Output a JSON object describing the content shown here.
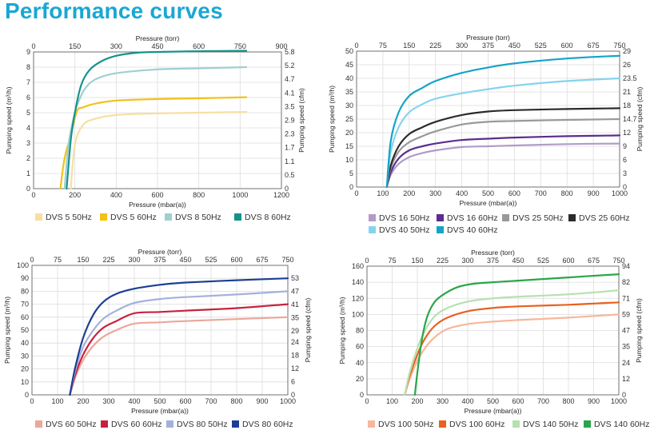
{
  "title": "Performance curves",
  "chart_data": [
    {
      "type": "line",
      "xlabel": "Pressure (mbar(a))",
      "x2label": "Pressure (torr)",
      "ylabel": "Pumping speed (m³/h)",
      "y2label": "Pumping speed (cfm)",
      "xlim": [
        0,
        1200
      ],
      "ylim": [
        0,
        9
      ],
      "xticks": [
        0,
        200,
        400,
        600,
        800,
        1000,
        1200
      ],
      "yticks": [
        0,
        1,
        2,
        3,
        4,
        5,
        6,
        7,
        8,
        9
      ],
      "x2ticks": [
        "0",
        "150",
        "300",
        "450",
        "600",
        "750",
        "900"
      ],
      "y2ticks": [
        "0",
        "0.5",
        "1.1",
        "1.7",
        "2.3",
        "2.9",
        "3.5",
        "4.1",
        "4.7",
        "5.2",
        "5.8"
      ],
      "grid": true,
      "legend": "bottom",
      "series": [
        {
          "name": "DVS 5 50Hz",
          "color": "#f7dfa2",
          "x": [
            180,
            200,
            240,
            300,
            400,
            600,
            800,
            1030
          ],
          "y": [
            0,
            2.9,
            4.2,
            4.6,
            4.85,
            4.95,
            5.0,
            5.05
          ]
        },
        {
          "name": "DVS 5 60Hz",
          "color": "#f2c218",
          "x": [
            130,
            150,
            180,
            210,
            240,
            300,
            400,
            600,
            800,
            1030
          ],
          "y": [
            0,
            2.0,
            3.5,
            5.1,
            5.35,
            5.6,
            5.8,
            5.9,
            5.95,
            6.02
          ]
        },
        {
          "name": "DVS 8 50Hz",
          "color": "#9fcfcf",
          "x": [
            150,
            170,
            200,
            220,
            250,
            300,
            400,
            600,
            800,
            1030
          ],
          "y": [
            0,
            3.0,
            5.0,
            5.8,
            6.6,
            7.2,
            7.6,
            7.85,
            7.92,
            8.0
          ]
        },
        {
          "name": "DVS 8 60Hz",
          "color": "#14938d",
          "x": [
            160,
            180,
            200,
            230,
            270,
            330,
            400,
            500,
            600,
            800,
            1030
          ],
          "y": [
            0,
            3.2,
            5.0,
            6.8,
            7.8,
            8.4,
            8.75,
            8.95,
            9.0,
            9.05,
            9.08
          ]
        }
      ]
    },
    {
      "type": "line",
      "xlabel": "Pressure (mbar(a))",
      "x2label": "Pressure (torr)",
      "ylabel": "Pumping speed (m³/h)",
      "y2label": "Pumping speed (cfm)",
      "xlim": [
        0,
        1000
      ],
      "ylim": [
        0,
        50
      ],
      "xticks": [
        0,
        100,
        200,
        300,
        400,
        500,
        600,
        700,
        800,
        900,
        1000
      ],
      "yticks": [
        0,
        5,
        10,
        15,
        20,
        25,
        30,
        35,
        40,
        45,
        50
      ],
      "x2ticks": [
        "0",
        "75",
        "150",
        "225",
        "300",
        "375",
        "450",
        "525",
        "600",
        "675",
        "750"
      ],
      "y2ticks": [
        "0",
        "3",
        "6",
        "9",
        "12",
        "14.7",
        "18",
        "21",
        "23.5",
        "26",
        "29"
      ],
      "grid": true,
      "legend": "bottom",
      "series": [
        {
          "name": "DVS 16 50Hz",
          "color": "#b39ac9",
          "x": [
            115,
            130,
            160,
            200,
            250,
            300,
            400,
            500,
            600,
            800,
            1000
          ],
          "y": [
            0,
            4.5,
            8.5,
            11,
            12.5,
            13.5,
            14.7,
            15,
            15.3,
            15.8,
            16
          ]
        },
        {
          "name": "DVS 16 60Hz",
          "color": "#5b2d8c",
          "x": [
            115,
            130,
            160,
            200,
            250,
            300,
            400,
            500,
            600,
            800,
            1000
          ],
          "y": [
            0,
            5.5,
            10.5,
            13.5,
            15,
            16,
            17.3,
            17.8,
            18.2,
            18.7,
            19
          ]
        },
        {
          "name": "DVS 25 50Hz",
          "color": "#999999",
          "x": [
            115,
            130,
            160,
            200,
            250,
            300,
            400,
            500,
            600,
            800,
            1000
          ],
          "y": [
            0,
            7,
            13,
            16.5,
            18.7,
            20.5,
            23,
            24,
            24.3,
            24.7,
            25
          ]
        },
        {
          "name": "DVS 25 60Hz",
          "color": "#2b2b2b",
          "x": [
            115,
            130,
            160,
            200,
            250,
            300,
            400,
            500,
            600,
            800,
            1000
          ],
          "y": [
            0,
            8,
            15,
            19.5,
            22,
            24,
            26.5,
            27.8,
            28.3,
            28.7,
            29
          ]
        },
        {
          "name": "DVS 40 50Hz",
          "color": "#86d3ee",
          "x": [
            115,
            130,
            160,
            200,
            250,
            300,
            400,
            500,
            600,
            800,
            1000
          ],
          "y": [
            0,
            13,
            22,
            27.5,
            30.5,
            32.5,
            34.5,
            36,
            37.3,
            39,
            40
          ]
        },
        {
          "name": "DVS 40 60Hz",
          "color": "#15a3c8",
          "x": [
            115,
            130,
            160,
            200,
            250,
            300,
            400,
            500,
            600,
            800,
            1000
          ],
          "y": [
            0,
            17,
            27.5,
            33.5,
            36.5,
            39,
            42,
            44,
            45.5,
            47.3,
            48.3
          ]
        }
      ]
    },
    {
      "type": "line",
      "xlabel": "Pressure (mbar(a))",
      "x2label": "Pressure (torr)",
      "ylabel": "Pumping speed (m³/h)",
      "y2label": "Pumping speed (cfm)",
      "xlim": [
        0,
        1000
      ],
      "ylim": [
        0,
        100
      ],
      "xticks": [
        0,
        100,
        200,
        300,
        400,
        500,
        600,
        700,
        800,
        900,
        1000
      ],
      "yticks": [
        0,
        10,
        20,
        30,
        40,
        50,
        60,
        70,
        80,
        90,
        100
      ],
      "x2ticks": [
        "0",
        "75",
        "150",
        "225",
        "300",
        "375",
        "450",
        "525",
        "600",
        "675",
        "750"
      ],
      "y2ticks": [
        "0",
        "6",
        "12",
        "18",
        "24",
        "29",
        "35",
        "41",
        "47",
        "53"
      ],
      "y2values": [
        0,
        10.2,
        20.4,
        30.6,
        40.8,
        49.3,
        59.5,
        69.7,
        79.9,
        90
      ],
      "grid": true,
      "legend": "bottom",
      "series": [
        {
          "name": "DVS 60 50Hz",
          "color": "#eba79a",
          "x": [
            148,
            170,
            200,
            240,
            280,
            330,
            400,
            500,
            600,
            800,
            1000
          ],
          "y": [
            0,
            14,
            27,
            38,
            45,
            50,
            55,
            56,
            57,
            58.5,
            60
          ]
        },
        {
          "name": "DVS 60 60Hz",
          "color": "#c8213f",
          "x": [
            148,
            170,
            200,
            240,
            280,
            330,
            400,
            500,
            600,
            800,
            1000
          ],
          "y": [
            0,
            16,
            31,
            44,
            52,
            57,
            63,
            64,
            65,
            67,
            70
          ]
        },
        {
          "name": "DVS 80 50Hz",
          "color": "#a3b2dc",
          "x": [
            148,
            170,
            200,
            240,
            280,
            330,
            400,
            500,
            600,
            800,
            1000
          ],
          "y": [
            0,
            19,
            37,
            50,
            59,
            65,
            71,
            74,
            75.5,
            77.5,
            80
          ]
        },
        {
          "name": "DVS 80 60Hz",
          "color": "#1c3f94",
          "x": [
            148,
            170,
            200,
            240,
            280,
            330,
            400,
            500,
            600,
            800,
            1000
          ],
          "y": [
            0,
            22,
            44,
            62,
            72,
            78,
            82,
            85,
            86.7,
            88.5,
            90
          ]
        }
      ]
    },
    {
      "type": "line",
      "xlabel": "Pressure (mbar(a))",
      "x2label": "Pressure (torr)",
      "ylabel": "Pumping speed (m³/h)",
      "y2label": "Pumping speed (cfm)",
      "xlim": [
        0,
        1000
      ],
      "ylim": [
        0,
        160
      ],
      "xticks": [
        0,
        100,
        200,
        300,
        400,
        500,
        600,
        700,
        800,
        900,
        1000
      ],
      "yticks": [
        0,
        20,
        40,
        60,
        80,
        100,
        120,
        140,
        160
      ],
      "x2ticks": [
        "0",
        "75",
        "150",
        "225",
        "300",
        "375",
        "450",
        "525",
        "600",
        "675",
        "750"
      ],
      "y2ticks": [
        "0",
        "12",
        "24",
        "35",
        "47",
        "59",
        "71",
        "82",
        "94"
      ],
      "grid": true,
      "legend": "bottom",
      "series": [
        {
          "name": "DVS 100 50Hz",
          "color": "#f7b79a",
          "x": [
            150,
            170,
            200,
            230,
            270,
            320,
            400,
            500,
            600,
            800,
            1000
          ],
          "y": [
            0,
            20,
            42,
            58,
            72,
            82,
            88,
            91,
            93,
            96,
            100
          ]
        },
        {
          "name": "DVS 100 60Hz",
          "color": "#e8611e",
          "x": [
            150,
            170,
            200,
            230,
            270,
            320,
            400,
            500,
            600,
            800,
            1000
          ],
          "y": [
            0,
            24,
            50,
            70,
            86,
            96,
            104,
            108,
            110,
            112,
            115
          ]
        },
        {
          "name": "DVS 140 50Hz",
          "color": "#b7e0b0",
          "x": [
            150,
            170,
            200,
            230,
            270,
            320,
            400,
            500,
            600,
            800,
            1000
          ],
          "y": [
            0,
            28,
            58,
            80,
            98,
            108,
            116,
            120,
            122,
            125,
            130
          ]
        },
        {
          "name": "DVS 140 60Hz",
          "color": "#2aa54a",
          "x": [
            190,
            205,
            220,
            240,
            270,
            310,
            360,
            420,
            500,
            600,
            800,
            1000
          ],
          "y": [
            0,
            40,
            72,
            98,
            116,
            126,
            134,
            138,
            140,
            142,
            146,
            150
          ]
        }
      ]
    }
  ]
}
